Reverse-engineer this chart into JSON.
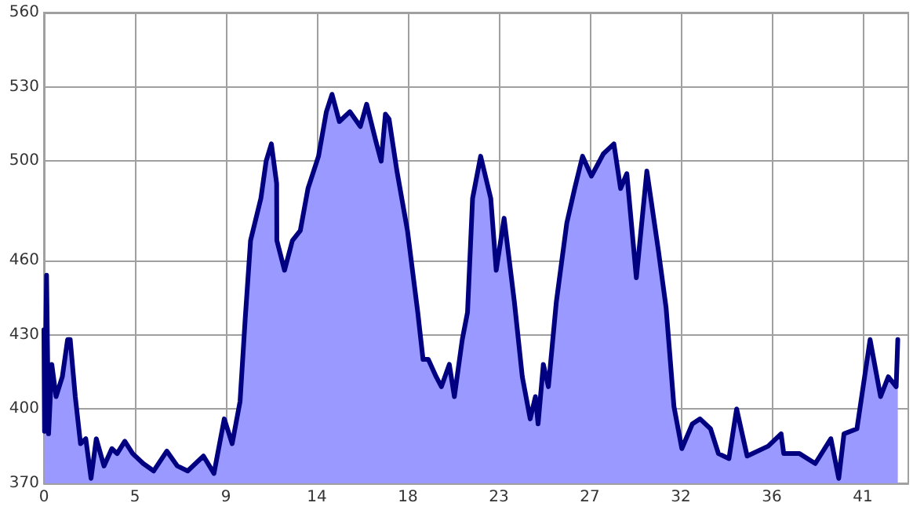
{
  "chart_data": {
    "type": "area",
    "xlim": [
      0,
      42.75
    ],
    "ylim": [
      370,
      560
    ],
    "xticks": [
      0,
      {
        "value": 4.5,
        "label": "5"
      },
      9,
      {
        "value": 13.5,
        "label": "14"
      },
      18,
      {
        "value": 22.5,
        "label": "23"
      },
      27,
      {
        "value": 31.5,
        "label": "32"
      },
      36,
      {
        "value": 40.5,
        "label": "41"
      }
    ],
    "yticks": [
      370,
      400,
      430,
      460,
      500,
      530,
      560
    ],
    "grid": true,
    "marker": "none",
    "line_style": "solid",
    "series": [
      {
        "color": "#000080",
        "x": [
          0,
          0.03,
          0.13,
          0.23,
          0.39,
          0.6,
          0.91,
          1.17,
          1.3,
          1.55,
          1.81,
          2.07,
          2.33,
          2.59,
          2.97,
          3.36,
          3.62,
          4.0,
          4.39,
          4.91,
          5.43,
          6.08,
          6.6,
          7.11,
          7.89,
          8.41,
          8.92,
          9.31,
          9.7,
          9.96,
          10.22,
          10.73,
          10.99,
          11.25,
          11.51,
          11.52,
          11.9,
          12.29,
          12.68,
          13.06,
          13.58,
          13.97,
          14.25,
          14.61,
          15.13,
          15.65,
          15.96,
          16.42,
          16.68,
          16.89,
          17.07,
          17.46,
          17.98,
          18.49,
          18.75,
          19.01,
          19.4,
          19.66,
          20.05,
          20.3,
          20.69,
          20.95,
          21.2,
          21.6,
          22.1,
          22.37,
          22.76,
          23.27,
          23.66,
          24.05,
          24.31,
          24.44,
          24.7,
          24.95,
          25.34,
          25.86,
          26.25,
          26.64,
          27.08,
          27.67,
          28.19,
          28.52,
          28.83,
          29.3,
          29.82,
          30.39,
          30.77,
          31.16,
          31.55,
          32.07,
          32.45,
          32.97,
          33.36,
          33.88,
          34.26,
          34.78,
          35.82,
          36.46,
          36.59,
          37.37,
          38.15,
          38.92,
          39.31,
          39.57,
          40.21,
          40.86,
          41.38,
          41.76,
          42.15,
          42.23
        ],
        "values": [
          432,
          391,
          454,
          390,
          418,
          405,
          413,
          428,
          428,
          405,
          386,
          388,
          372,
          388,
          377,
          384,
          382,
          387,
          382,
          378,
          375,
          383,
          377,
          375,
          381,
          374,
          396,
          386,
          403,
          437,
          468,
          485,
          500,
          507,
          491,
          468,
          456,
          468,
          472,
          489,
          502,
          520,
          527,
          516,
          520,
          514,
          523,
          508,
          500,
          519,
          517,
          496,
          472,
          439,
          420,
          420,
          413,
          409,
          418,
          405,
          428,
          439,
          485,
          502,
          485,
          456,
          477,
          443,
          413,
          396,
          405,
          394,
          418,
          409,
          443,
          475,
          489,
          502,
          494,
          503,
          507,
          489,
          495,
          453,
          496,
          464,
          441,
          401,
          384,
          394,
          396,
          392,
          382,
          380,
          400,
          381,
          385,
          390,
          382,
          382,
          378,
          388,
          372,
          390,
          392,
          428,
          405,
          413,
          409,
          428
        ]
      }
    ]
  }
}
